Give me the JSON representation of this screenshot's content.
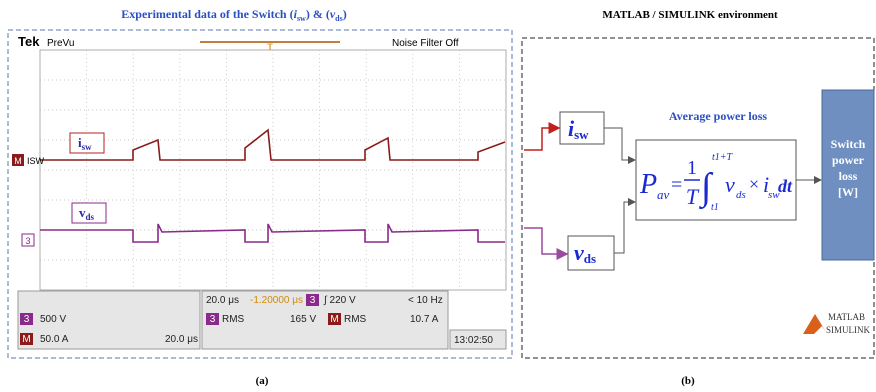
{
  "panel_a": {
    "title": [
      "Experimental data of the Switch (",
      "i",
      "sw",
      ") & (",
      "v",
      "ds",
      ")"
    ],
    "scope": {
      "brand": "Tek",
      "mode": "PreVu",
      "trigger_marker": "T",
      "filter": "Noise Filter Off",
      "ch_m": {
        "marker": "M",
        "name": "ISW"
      },
      "ch_3": {
        "marker": "3"
      },
      "label_i": {
        "symbol": "i",
        "sub": "sw"
      },
      "label_v": {
        "symbol": "v",
        "sub": "ds"
      },
      "readout": {
        "timebase": "20.0 μs",
        "delay": "-1.20000 μs",
        "trig_ch": "3",
        "trig_level": "∫ 220 V",
        "trig_freq": "< 10 Hz",
        "ch3_marker": "3",
        "ch3_scale": "500 V",
        "m_marker": "M",
        "m_scale": "50.0 A",
        "m_time": "20.0 μs",
        "meas1_ch": "3",
        "meas1_type": "RMS",
        "meas1_value": "165 V",
        "meas2_ch": "M",
        "meas2_type": "RMS",
        "meas2_value": "10.7 A",
        "clock": "13:02:50"
      }
    },
    "caption": "(a)"
  },
  "panel_b": {
    "title": "MATLAB / SIMULINK environment",
    "block_title": "Average power loss",
    "input_i": {
      "symbol": "i",
      "sub": "sw"
    },
    "input_v": {
      "symbol": "v",
      "sub": "ds"
    },
    "formula": {
      "lhs": "P",
      "lhs_sub": "av",
      "equals": "=",
      "numerator": "1",
      "denominator": "T",
      "integral": "∫",
      "upper": "t1+T",
      "lower": "t1",
      "v": "v",
      "v_sub": "ds",
      "times": "×",
      "i": "i",
      "i_sub": "sw",
      "differential": "dt"
    },
    "output": [
      "Switch",
      "power",
      "loss",
      "[W]"
    ],
    "logo": [
      "MATLAB",
      "SIMULINK"
    ],
    "caption": "(b)"
  }
}
